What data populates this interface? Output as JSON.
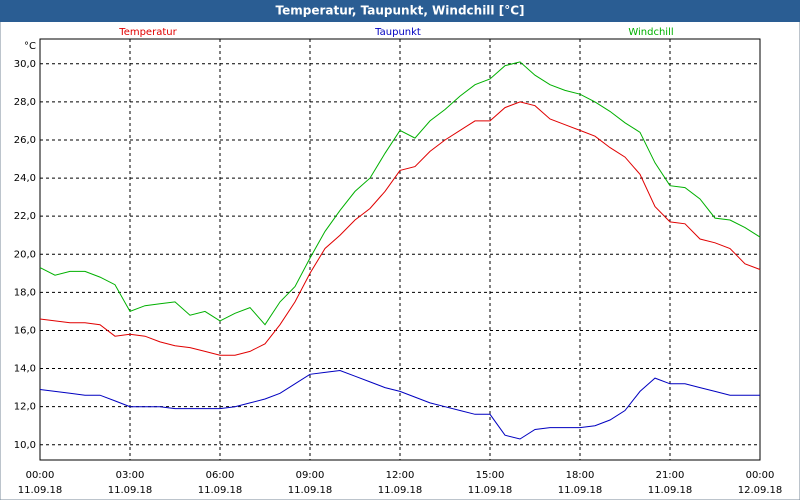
{
  "chart_data": {
    "type": "line",
    "title": "Temperatur, Taupunkt, Windchill [°C]",
    "y_unit": "°C",
    "x": [
      0,
      0.5,
      1,
      1.5,
      2,
      2.5,
      3,
      3.5,
      4,
      4.5,
      5,
      5.5,
      6,
      6.5,
      7,
      7.5,
      8,
      8.5,
      9,
      9.5,
      10,
      10.5,
      11,
      11.5,
      12,
      12.5,
      13,
      13.5,
      14,
      14.5,
      15,
      15.5,
      16,
      16.5,
      17,
      17.5,
      18,
      18.5,
      19,
      19.5,
      20,
      20.5,
      21,
      21.5,
      22,
      22.5,
      23,
      23.5,
      24
    ],
    "xlim": [
      0,
      24
    ],
    "xticks": [
      {
        "value": 0,
        "label": [
          "00:00",
          "11.09.18"
        ]
      },
      {
        "value": 3,
        "label": [
          "03:00",
          "11.09.18"
        ]
      },
      {
        "value": 6,
        "label": [
          "06:00",
          "11.09.18"
        ]
      },
      {
        "value": 9,
        "label": [
          "09:00",
          "11.09.18"
        ]
      },
      {
        "value": 12,
        "label": [
          "12:00",
          "11.09.18"
        ]
      },
      {
        "value": 15,
        "label": [
          "15:00",
          "11.09.18"
        ]
      },
      {
        "value": 18,
        "label": [
          "18:00",
          "11.09.18"
        ]
      },
      {
        "value": 21,
        "label": [
          "21:00",
          "11.09.18"
        ]
      },
      {
        "value": 24,
        "label": [
          "00:00",
          "12.09.18"
        ]
      }
    ],
    "ylim": [
      9.2,
      31.3
    ],
    "yticks": [
      {
        "value": 10,
        "label": "10,0"
      },
      {
        "value": 12,
        "label": "12,0"
      },
      {
        "value": 14,
        "label": "14,0"
      },
      {
        "value": 16,
        "label": "16,0"
      },
      {
        "value": 18,
        "label": "18,0"
      },
      {
        "value": 20,
        "label": "20,0"
      },
      {
        "value": 22,
        "label": "22,0"
      },
      {
        "value": 24,
        "label": "24,0"
      },
      {
        "value": 26,
        "label": "26,0"
      },
      {
        "value": 28,
        "label": "28,0"
      },
      {
        "value": 30,
        "label": "30,0"
      }
    ],
    "grid": true,
    "series": [
      {
        "name": "Temperatur",
        "color": "#e00000",
        "values": [
          16.6,
          16.5,
          16.4,
          16.4,
          16.3,
          15.7,
          15.8,
          15.7,
          15.4,
          15.2,
          15.1,
          14.9,
          14.7,
          14.7,
          14.9,
          15.3,
          16.3,
          17.5,
          19.0,
          20.3,
          21.0,
          21.8,
          22.4,
          23.3,
          24.4,
          24.6,
          25.4,
          26.0,
          26.5,
          27.0,
          27.0,
          27.7,
          28.0,
          27.8,
          27.1,
          26.8,
          26.5,
          26.2,
          25.6,
          25.1,
          24.2,
          22.5,
          21.7,
          21.6,
          20.8,
          20.6,
          20.3,
          19.5,
          19.2
        ]
      },
      {
        "name": "Taupunkt",
        "color": "#0000c0",
        "values": [
          12.9,
          12.8,
          12.7,
          12.6,
          12.6,
          12.3,
          12.0,
          12.0,
          12.0,
          11.9,
          11.9,
          11.9,
          11.9,
          12.0,
          12.2,
          12.4,
          12.7,
          13.2,
          13.7,
          13.8,
          13.9,
          13.6,
          13.3,
          13.0,
          12.8,
          12.5,
          12.2,
          12.0,
          11.8,
          11.6,
          11.6,
          10.5,
          10.3,
          10.8,
          10.9,
          10.9,
          10.9,
          11.0,
          11.3,
          11.8,
          12.8,
          13.5,
          13.2,
          13.2,
          13.0,
          12.8,
          12.6,
          12.6,
          12.6
        ]
      },
      {
        "name": "Windchill",
        "color": "#00b000",
        "values": [
          19.3,
          18.9,
          19.1,
          19.1,
          18.8,
          18.4,
          17.0,
          17.3,
          17.4,
          17.5,
          16.8,
          17.0,
          16.5,
          16.9,
          17.2,
          16.3,
          17.5,
          18.3,
          19.8,
          21.2,
          22.3,
          23.3,
          24.0,
          25.3,
          26.5,
          26.1,
          27.0,
          27.6,
          28.3,
          28.9,
          29.2,
          29.9,
          30.1,
          29.4,
          28.9,
          28.6,
          28.4,
          28.0,
          27.5,
          26.9,
          26.4,
          24.8,
          23.6,
          23.5,
          22.9,
          21.9,
          21.8,
          21.4,
          20.9
        ]
      }
    ]
  }
}
